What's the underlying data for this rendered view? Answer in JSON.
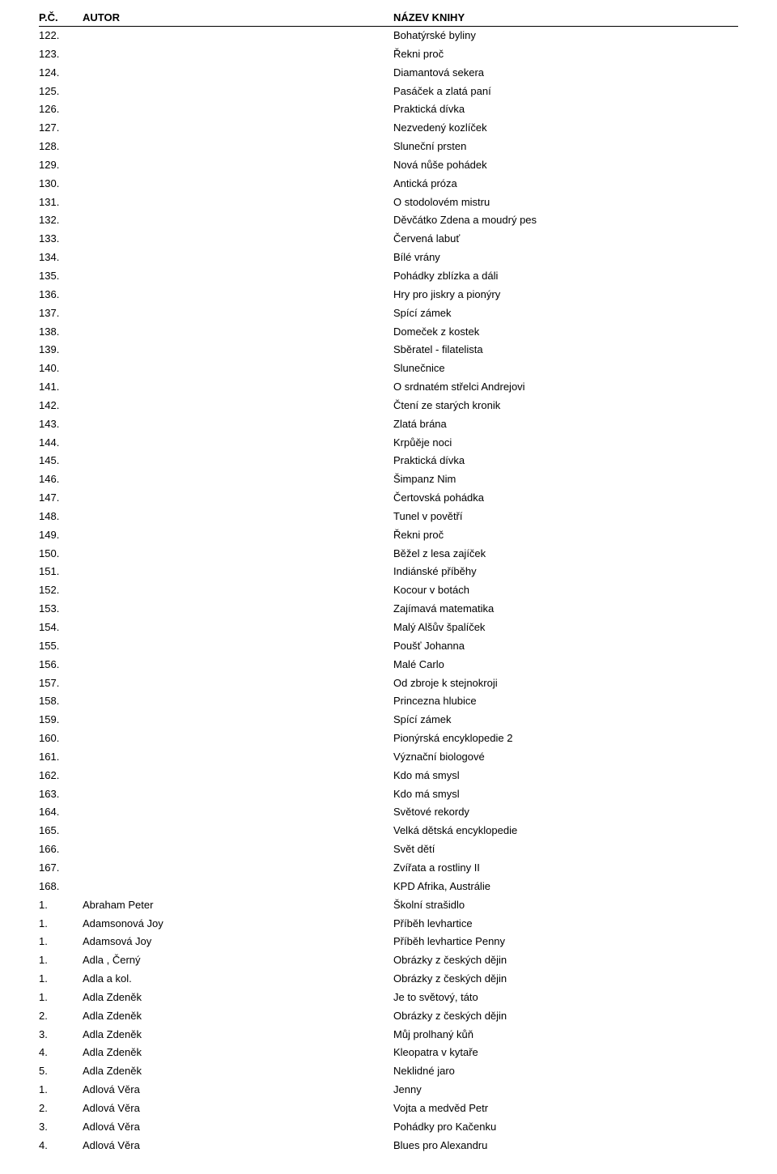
{
  "table": {
    "headers": {
      "pc": "P.Č.",
      "author": "AUTOR",
      "title": "NÁZEV KNIHY"
    },
    "col_widths": {
      "pc": 50,
      "author": 380
    },
    "header_border_color": "#000000",
    "font_family": "Arial, Helvetica, sans-serif",
    "font_size_pt": 10,
    "text_color": "#000000",
    "background_color": "#ffffff",
    "rows": [
      {
        "pc": "122.",
        "author": "",
        "title": "Bohatýrské byliny"
      },
      {
        "pc": "123.",
        "author": "",
        "title": "Řekni proč"
      },
      {
        "pc": "124.",
        "author": "",
        "title": "Diamantová sekera"
      },
      {
        "pc": "125.",
        "author": "",
        "title": "Pasáček a zlatá paní"
      },
      {
        "pc": "126.",
        "author": "",
        "title": "Praktická dívka"
      },
      {
        "pc": "127.",
        "author": "",
        "title": "Nezvedený kozlíček"
      },
      {
        "pc": "128.",
        "author": "",
        "title": "Sluneční prsten"
      },
      {
        "pc": "129.",
        "author": "",
        "title": "Nová nůše   pohádek"
      },
      {
        "pc": "130.",
        "author": "",
        "title": "Antická próza"
      },
      {
        "pc": "131.",
        "author": "",
        "title": "O stodolovém mistru"
      },
      {
        "pc": "132.",
        "author": "",
        "title": "Děvčátko Zdena a moudrý pes"
      },
      {
        "pc": "133.",
        "author": "",
        "title": "Červená labuť"
      },
      {
        "pc": "134.",
        "author": "",
        "title": "Bílé vrány"
      },
      {
        "pc": "135.",
        "author": "",
        "title": "Pohádky zblízka a dáli"
      },
      {
        "pc": "136.",
        "author": "",
        "title": "Hry pro jiskry a pionýry"
      },
      {
        "pc": "137.",
        "author": "",
        "title": "Spící zámek"
      },
      {
        "pc": "138.",
        "author": "",
        "title": "Domeček z kostek"
      },
      {
        "pc": "139.",
        "author": "",
        "title": "Sběratel - filatelista"
      },
      {
        "pc": "140.",
        "author": "",
        "title": "Slunečnice"
      },
      {
        "pc": "141.",
        "author": "",
        "title": "O srdnatém střelci Andrejovi"
      },
      {
        "pc": "142.",
        "author": "",
        "title": "Čtení ze starých kronik"
      },
      {
        "pc": "143.",
        "author": "",
        "title": "Zlatá brána"
      },
      {
        "pc": "144.",
        "author": "",
        "title": "Krpůěje noci"
      },
      {
        "pc": "145.",
        "author": "",
        "title": "Praktická dívka"
      },
      {
        "pc": "146.",
        "author": "",
        "title": "Šimpanz Nim"
      },
      {
        "pc": "147.",
        "author": "",
        "title": "Čertovská pohádka"
      },
      {
        "pc": "148.",
        "author": "",
        "title": "Tunel v povětří"
      },
      {
        "pc": "149.",
        "author": "",
        "title": "Řekni proč"
      },
      {
        "pc": "150.",
        "author": "",
        "title": "Běžel z lesa zajíček"
      },
      {
        "pc": "151.",
        "author": "",
        "title": "Indiánské příběhy"
      },
      {
        "pc": "152.",
        "author": "",
        "title": "Kocour v botách"
      },
      {
        "pc": "153.",
        "author": "",
        "title": "Zajímavá matematika"
      },
      {
        "pc": "154.",
        "author": "",
        "title": "Malý Alšův špalíček"
      },
      {
        "pc": "155.",
        "author": "",
        "title": "Poušť Johanna"
      },
      {
        "pc": "156.",
        "author": "",
        "title": "Malé Carlo"
      },
      {
        "pc": "157.",
        "author": "",
        "title": "Od zbroje k stejnokroji"
      },
      {
        "pc": "158.",
        "author": "",
        "title": "Princezna hlubice"
      },
      {
        "pc": "159.",
        "author": "",
        "title": "Spící zámek"
      },
      {
        "pc": "160.",
        "author": "",
        "title": "Pionýrská encyklopedie 2"
      },
      {
        "pc": "161.",
        "author": "",
        "title": "Význační biologové"
      },
      {
        "pc": "162.",
        "author": "",
        "title": "Kdo má smysl"
      },
      {
        "pc": "163.",
        "author": "",
        "title": "Kdo má smysl"
      },
      {
        "pc": "164.",
        "author": "",
        "title": "Světové rekordy"
      },
      {
        "pc": "165.",
        "author": "",
        "title": "Velká dětská encyklopedie"
      },
      {
        "pc": "166.",
        "author": "",
        "title": "Svět dětí"
      },
      {
        "pc": "167.",
        "author": "",
        "title": "Zvířata a rostliny II"
      },
      {
        "pc": "168.",
        "author": "",
        "title": "KPD Afrika, Austrálie"
      },
      {
        "pc": "1.",
        "author": "Abraham Peter",
        "title": "Školní strašidlo"
      },
      {
        "pc": "1.",
        "author": "Adamsonová Joy",
        "title": "Příběh levhartice"
      },
      {
        "pc": "1.",
        "author": "Adamsová Joy",
        "title": "Příběh levhartice Penny"
      },
      {
        "pc": "1.",
        "author": "Adla , Černý",
        "title": "Obrázky z českých dějin"
      },
      {
        "pc": "1.",
        "author": "Adla a kol.",
        "title": "Obrázky z českých dějin"
      },
      {
        "pc": "1.",
        "author": "Adla Zdeněk",
        "title": "Je to světový, táto"
      },
      {
        "pc": "2.",
        "author": "Adla Zdeněk",
        "title": "Obrázky z českých dějin"
      },
      {
        "pc": "3.",
        "author": "Adla Zdeněk",
        "title": "Můj prolhaný kůň"
      },
      {
        "pc": "4.",
        "author": "Adla Zdeněk",
        "title": "Kleopatra v kytaře"
      },
      {
        "pc": "5.",
        "author": "Adla Zdeněk",
        "title": "Neklidné jaro"
      },
      {
        "pc": "1.",
        "author": "Adlová Věra",
        "title": "Jenny"
      },
      {
        "pc": "2.",
        "author": "Adlová Věra",
        "title": "Vojta a medvěd Petr"
      },
      {
        "pc": "3.",
        "author": "Adlová Věra",
        "title": "Pohádky pro Kačenku"
      },
      {
        "pc": "4.",
        "author": "Adlová Věra",
        "title": "Blues pro Alexandru"
      }
    ]
  }
}
